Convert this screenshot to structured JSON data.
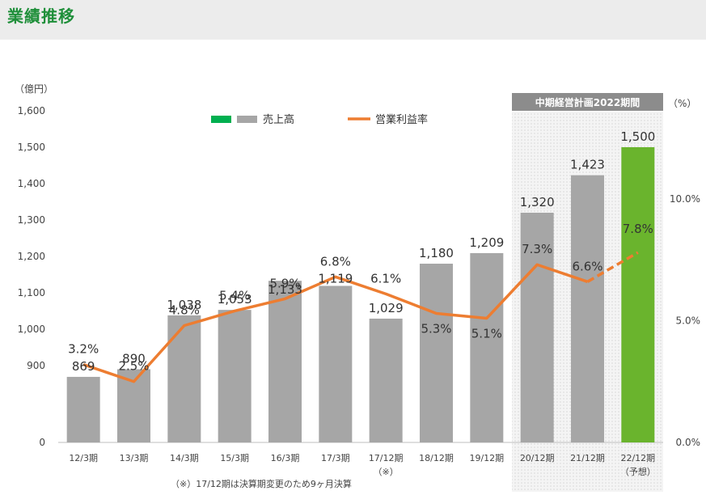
{
  "header": {
    "title": "業績推移"
  },
  "chart_data": {
    "type": "bar",
    "categories": [
      "12/3期",
      "13/3期",
      "14/3期",
      "15/3期",
      "16/3期",
      "17/3期",
      "17/12期",
      "18/12期",
      "19/12期",
      "20/12期",
      "21/12期",
      "22/12期"
    ],
    "category_notes": [
      "",
      "",
      "",
      "",
      "",
      "",
      "（※）",
      "",
      "",
      "",
      "",
      "（予想）"
    ],
    "left_axis": {
      "unit_label": "（億円）",
      "ticks": [
        "0",
        "900",
        "1,000",
        "1,100",
        "1,200",
        "1,300",
        "1,400",
        "1,500",
        "1,600"
      ],
      "tick_values": [
        800,
        900,
        1000,
        1100,
        1200,
        1300,
        1400,
        1500,
        1600
      ],
      "ylim": [
        800,
        1600
      ],
      "broken_axis": true
    },
    "right_axis": {
      "unit_label": "（%）",
      "ticks": [
        "0.0%",
        "5.0%",
        "10.0%"
      ],
      "tick_values": [
        0,
        5,
        10
      ],
      "ylim": [
        0,
        13.62
      ]
    },
    "series": [
      {
        "name": "売上高",
        "kind": "bar",
        "axis": "left",
        "values": [
          869,
          890,
          1038,
          1053,
          1133,
          1119,
          1029,
          1180,
          1209,
          1320,
          1423,
          1500
        ],
        "labels": [
          "869",
          "890",
          "1,038",
          "1,053",
          "1,133",
          "1,119",
          "1,029",
          "1,180",
          "1,209",
          "1,320",
          "1,423",
          "1,500"
        ],
        "color": "#a6a6a6",
        "forecast_color": "#6ab42d"
      },
      {
        "name": "営業利益率",
        "kind": "line",
        "axis": "right",
        "values": [
          3.2,
          2.5,
          4.8,
          5.4,
          5.9,
          6.8,
          6.1,
          5.3,
          5.1,
          7.3,
          6.6,
          7.8
        ],
        "labels": [
          "3.2%",
          "2.5%",
          "4.8%",
          "5.4%",
          "5.9%",
          "6.8%",
          "6.1%",
          "5.3%",
          "5.1%",
          "7.3%",
          "6.6%",
          "7.8%"
        ],
        "color": "#ed7d31",
        "dashed_from_index": 10
      }
    ],
    "legend": {
      "placement": "top-center",
      "swatch_colors": [
        "#00b050",
        "#a6a6a6"
      ]
    },
    "plan_period": {
      "label": "中期経営計画2022期間",
      "start_index": 9,
      "end_index": 11
    },
    "footnote": "（※）17/12期は決算期変更のため9ヶ月決算",
    "grid": false
  }
}
